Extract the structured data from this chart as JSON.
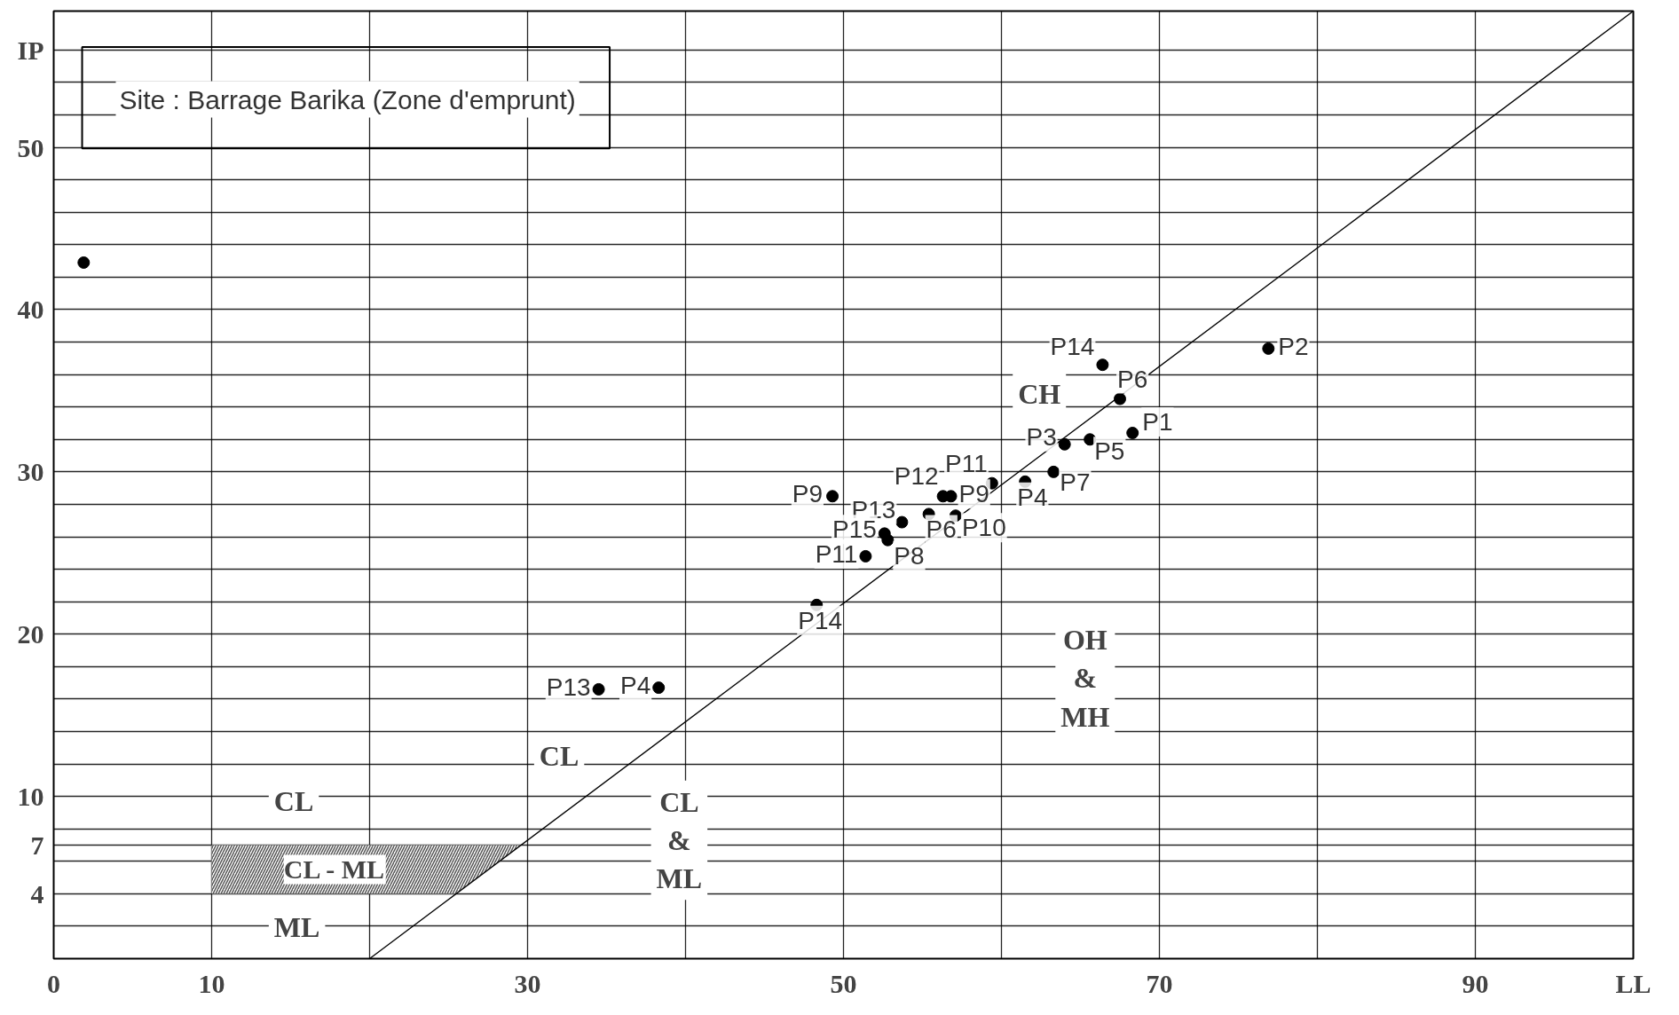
{
  "chart_data": {
    "type": "scatter",
    "xlim": [
      0,
      100
    ],
    "ylim": [
      0,
      58.4
    ],
    "xticks": [
      0,
      10,
      {
        "value": 20,
        "label": null
      },
      30,
      {
        "value": 40,
        "label": null
      },
      50,
      {
        "value": 60,
        "label": null
      },
      70,
      {
        "value": 80,
        "label": null
      },
      90,
      {
        "value": 100,
        "label": "LL"
      }
    ],
    "yticks": [
      {
        "value": 0,
        "label": null
      },
      {
        "value": 2,
        "label": null
      },
      4,
      {
        "value": 6,
        "label": null
      },
      7,
      {
        "value": 8,
        "label": null
      },
      10,
      {
        "value": 12,
        "label": null
      },
      {
        "value": 14,
        "label": null
      },
      {
        "value": 16,
        "label": null
      },
      {
        "value": 18,
        "label": null
      },
      20,
      {
        "value": 22,
        "label": null
      },
      {
        "value": 24,
        "label": null
      },
      {
        "value": 26,
        "label": null
      },
      {
        "value": 28,
        "label": null
      },
      30,
      {
        "value": 32,
        "label": null
      },
      {
        "value": 34,
        "label": null
      },
      {
        "value": 36,
        "label": null
      },
      {
        "value": 38,
        "label": null
      },
      40,
      {
        "value": 42,
        "label": null
      },
      {
        "value": 44,
        "label": null
      },
      {
        "value": 46,
        "label": null
      },
      {
        "value": 48,
        "label": null
      },
      50,
      {
        "value": 52,
        "label": null
      },
      {
        "value": 54,
        "label": null
      },
      {
        "value": 56,
        "label": "IP"
      }
    ],
    "grid": true,
    "marker": "circle",
    "series": [
      {
        "color": "#000000",
        "x": [
          1.9,
          66.4,
          76.9,
          67.5,
          68.3,
          65.6,
          64.0,
          63.3,
          61.5,
          59.4,
          56.8,
          56.3,
          57.1,
          55.4,
          53.7,
          52.6,
          52.8,
          51.4,
          49.3,
          48.3,
          34.5,
          38.3
        ],
        "values": [
          42.9,
          36.6,
          37.6,
          34.5,
          32.4,
          32.0,
          31.7,
          30.0,
          29.4,
          29.3,
          28.5,
          28.5,
          27.3,
          27.4,
          26.9,
          26.2,
          25.8,
          24.8,
          28.5,
          21.8,
          16.6,
          16.7
        ],
        "value_labels": [
          null,
          "P14",
          "P2",
          "P6",
          "P1",
          "P5",
          "P3",
          "P7",
          "P4",
          "P11",
          "P9",
          "P12",
          "P10",
          "P6",
          "P13",
          "P15",
          "P8",
          "P11",
          "P9",
          "P14",
          "P13",
          "P4"
        ]
      },
      {
        "type": "line",
        "color": "#000000",
        "marker": "none",
        "x": [
          20,
          100
        ],
        "values": [
          0,
          58.4
        ]
      }
    ],
    "bands": [
      {
        "axis": "y",
        "from": 4,
        "to": 7,
        "color": "#555555",
        "label": "CL - ML"
      }
    ],
    "annotations": [
      "Site : Barrage Barika (Zone d'emprunt)",
      "CH",
      "OH\n&\nMH",
      "CL",
      "CL",
      "CL\n&\nML",
      "ML"
    ]
  }
}
